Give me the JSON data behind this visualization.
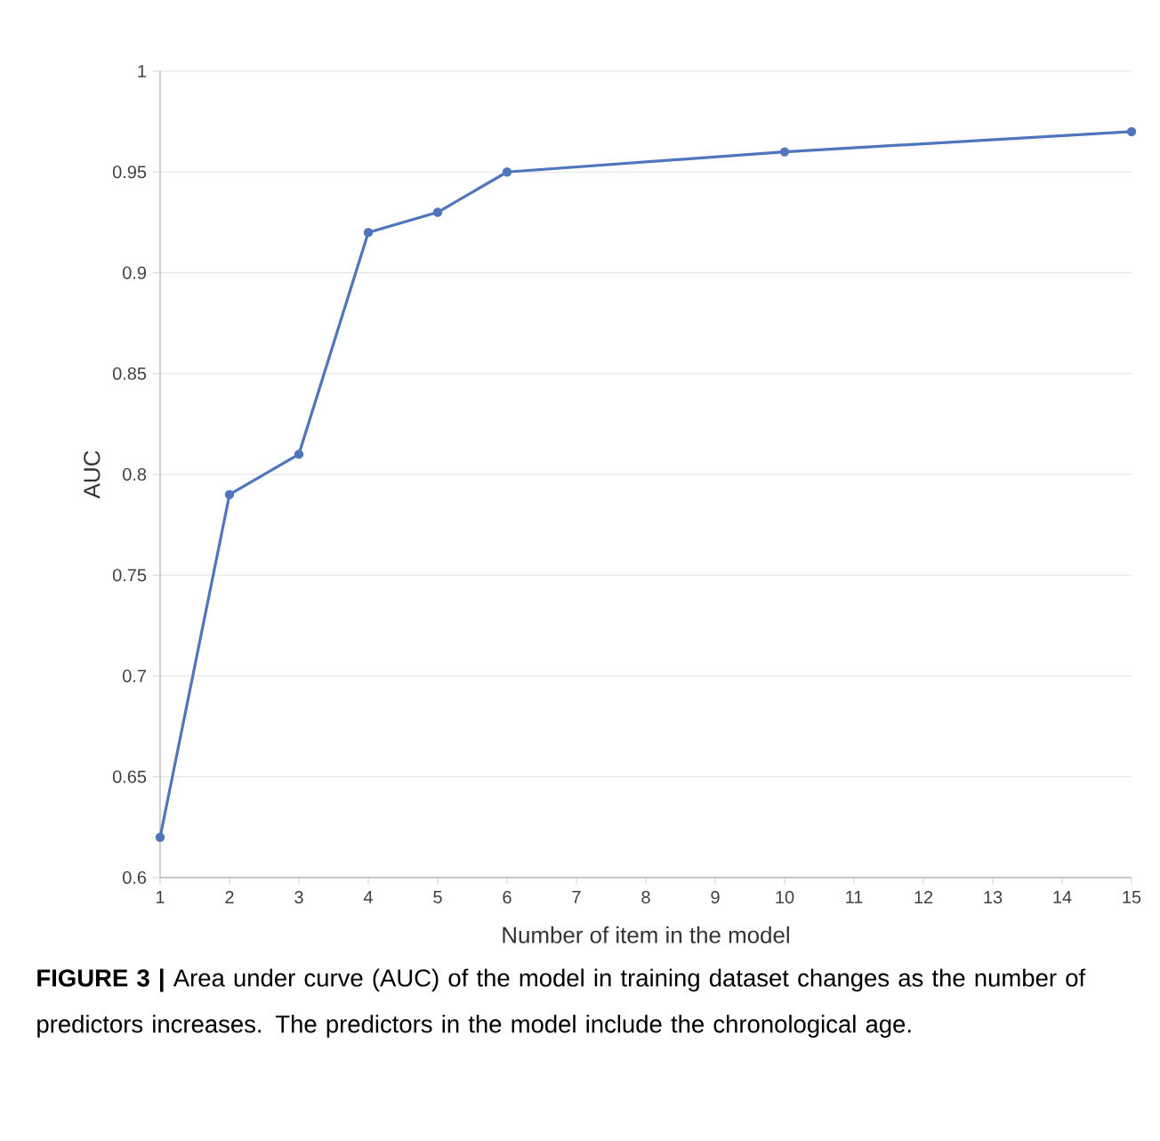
{
  "chart_data": {
    "type": "line",
    "xlabel": "Number of item in the model",
    "ylabel": "AUC",
    "x": [
      1,
      2,
      3,
      4,
      5,
      6,
      10,
      15
    ],
    "series": [
      {
        "color": "#4f76bb",
        "values": [
          0.62,
          0.79,
          0.81,
          0.92,
          0.93,
          0.95,
          0.96,
          0.97
        ]
      }
    ],
    "xlim": [
      1,
      15
    ],
    "xticks": [
      1,
      2,
      3,
      4,
      5,
      6,
      7,
      8,
      9,
      10,
      11,
      12,
      13,
      14,
      15
    ],
    "ylim": [
      0.6,
      1
    ],
    "yticks": [
      0.6,
      0.65,
      0.7,
      0.75,
      0.8,
      0.85,
      0.9,
      0.95,
      1
    ],
    "grid": "y",
    "marker": "circle",
    "line_style": "solid",
    "annotations": [
      "**FIGURE 3 |** Area under curve (AUC) of the model in training dataset changes as the number of predictors increases. The predictors in the model include the chronological age."
    ]
  }
}
